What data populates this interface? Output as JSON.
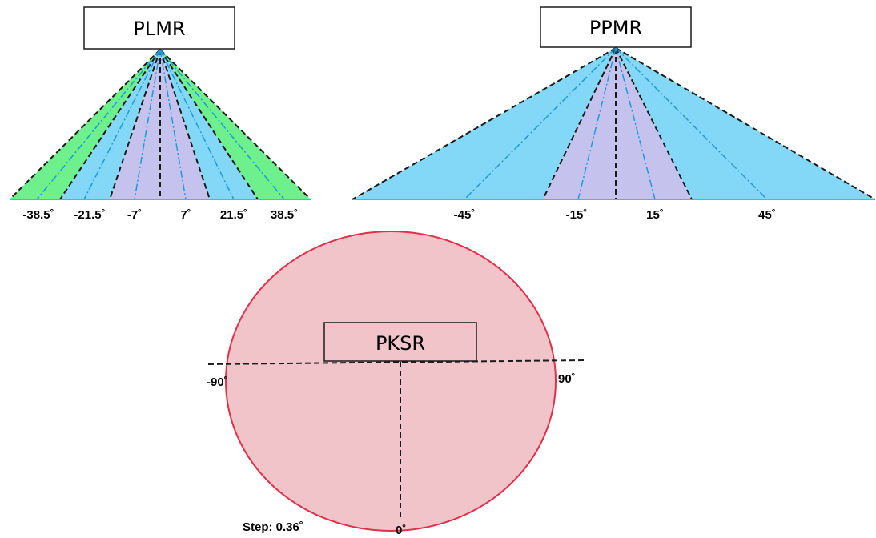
{
  "colors": {
    "green_zone": "#6ef08c",
    "blue_zone": "#82d8f6",
    "lavender_zone": "#c5c3ee",
    "pink_zone": "#f1c4c9",
    "circle_stroke": "#e0304a",
    "mid_line": "#1e9ad8",
    "edge_line": "#1a1a1a"
  },
  "plmr": {
    "label": "PLMR",
    "angles": [
      "-38.5˚",
      "-21.5˚",
      "-7˚",
      "7˚",
      "21.5˚",
      "38.5˚"
    ]
  },
  "ppmr": {
    "label": "PPMR",
    "angles": [
      "-45˚",
      "-15˚",
      "15˚",
      "45˚"
    ]
  },
  "pksr": {
    "label": "PKSR",
    "angle_left": "-90˚",
    "angle_right": "90˚",
    "angle_bottom": "0˚",
    "step": "Step: 0.36˚"
  }
}
